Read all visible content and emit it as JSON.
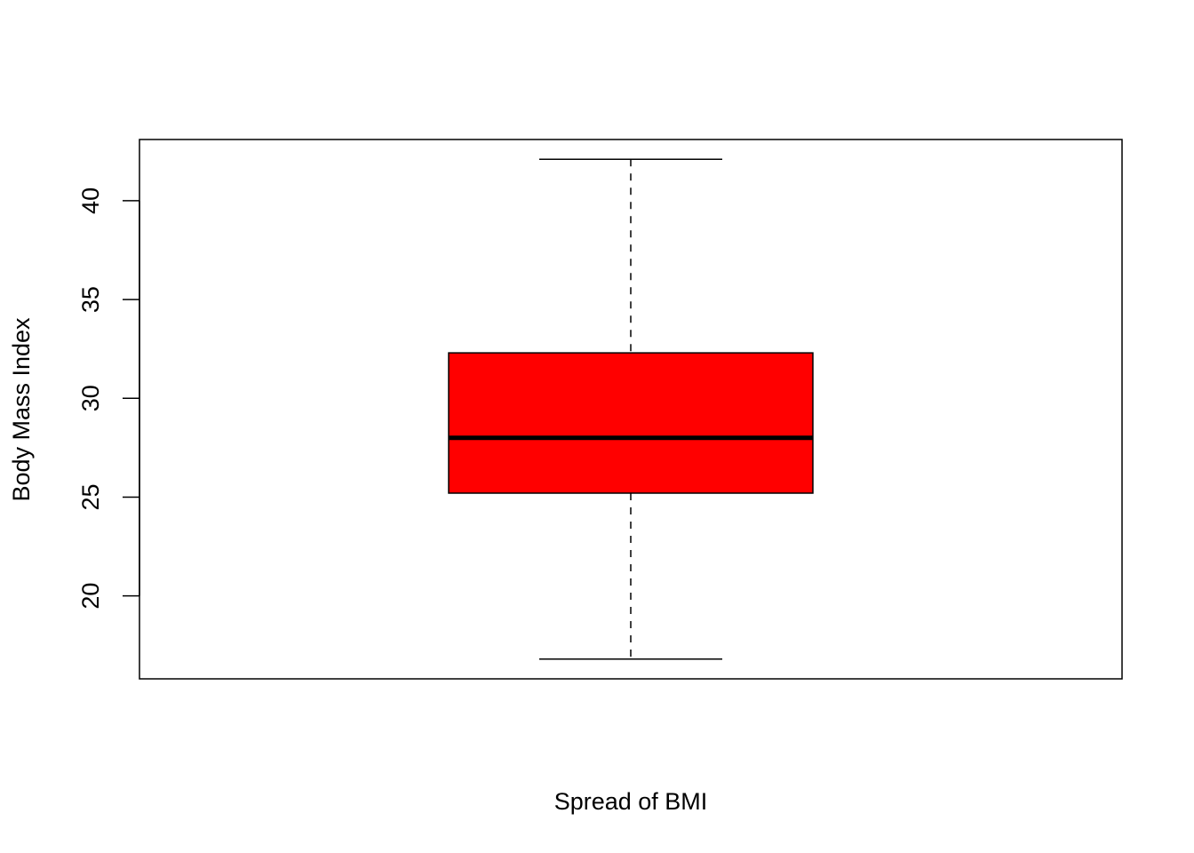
{
  "chart_data": {
    "type": "boxplot",
    "xlabel": "Spread of BMI",
    "ylabel": "Body Mass Index",
    "ylim": [
      15.8,
      43.1
    ],
    "yticks": [
      20,
      25,
      30,
      35,
      40
    ],
    "yticklabels": [
      "20",
      "25",
      "30",
      "35",
      "40"
    ],
    "grid": false,
    "legend": "none",
    "box": {
      "min": 16.8,
      "q1": 25.2,
      "median": 28.0,
      "q3": 32.3,
      "max": 42.1
    },
    "colors": {
      "box_fill": "#ff0000",
      "stroke": "#000000",
      "background": "#ffffff"
    }
  }
}
